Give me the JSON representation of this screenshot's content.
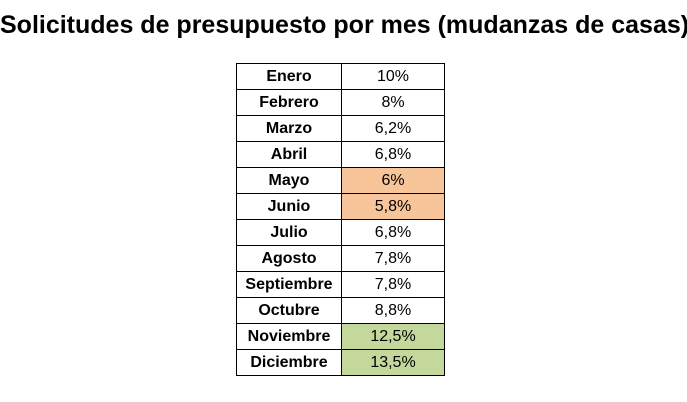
{
  "title": "Solicitudes de presupuesto por mes (mudanzas de casas)",
  "highlight_colors": {
    "low": "#f8c49a",
    "high": "#c4d89b",
    "none": "#ffffff"
  },
  "chart_data": {
    "type": "table",
    "title": "Solicitudes de presupuesto por mes (mudanzas de casas)",
    "rows": [
      {
        "month": "Enero",
        "value": 10,
        "label": "10%",
        "highlight": "none"
      },
      {
        "month": "Febrero",
        "value": 8,
        "label": "8%",
        "highlight": "none"
      },
      {
        "month": "Marzo",
        "value": 6.2,
        "label": "6,2%",
        "highlight": "none"
      },
      {
        "month": "Abril",
        "value": 6.8,
        "label": "6,8%",
        "highlight": "none"
      },
      {
        "month": "Mayo",
        "value": 6,
        "label": "6%",
        "highlight": "low"
      },
      {
        "month": "Junio",
        "value": 5.8,
        "label": "5,8%",
        "highlight": "low"
      },
      {
        "month": "Julio",
        "value": 6.8,
        "label": "6,8%",
        "highlight": "none"
      },
      {
        "month": "Agosto",
        "value": 7.8,
        "label": "7,8%",
        "highlight": "none"
      },
      {
        "month": "Septiembre",
        "value": 7.8,
        "label": "7,8%",
        "highlight": "none"
      },
      {
        "month": "Octubre",
        "value": 8.8,
        "label": "8,8%",
        "highlight": "none"
      },
      {
        "month": "Noviembre",
        "value": 12.5,
        "label": "12,5%",
        "highlight": "high"
      },
      {
        "month": "Diciembre",
        "value": 13.5,
        "label": "13,5%",
        "highlight": "high"
      }
    ]
  }
}
